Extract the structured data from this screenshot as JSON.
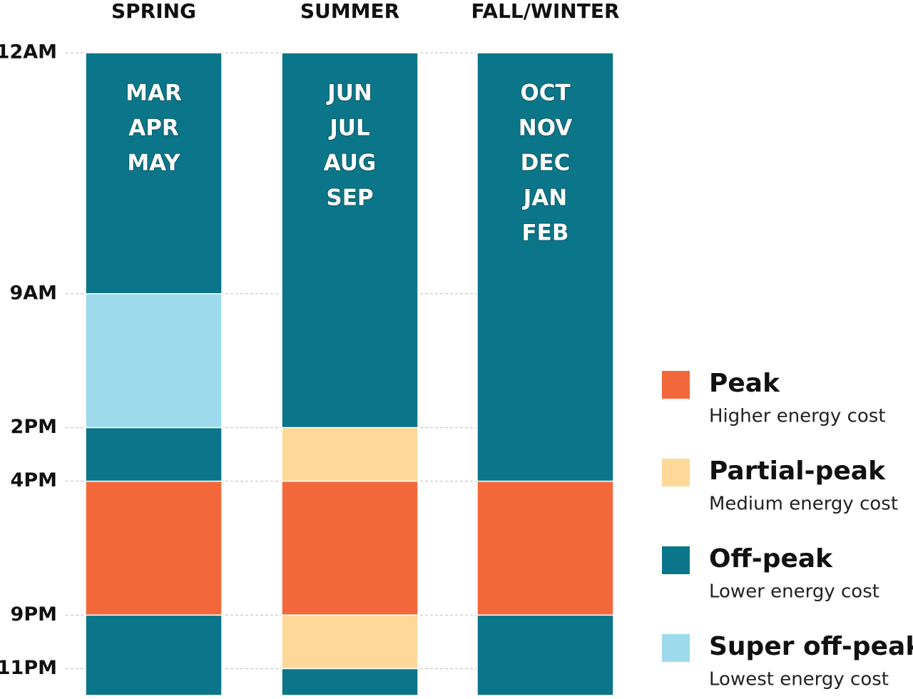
{
  "chart_data": {
    "type": "stacked-bar",
    "ylim": [
      0,
      24
    ],
    "yticks": [
      {
        "value": 0,
        "label": "12AM"
      },
      {
        "value": 9,
        "label": "9AM"
      },
      {
        "value": 14,
        "label": "2PM"
      },
      {
        "value": 16,
        "label": "4PM"
      },
      {
        "value": 21,
        "label": "9PM"
      },
      {
        "value": 23,
        "label": "11PM"
      }
    ],
    "grid": true,
    "series": [
      {
        "name": "Peak",
        "description": "Higher energy cost",
        "color": "#f2683b"
      },
      {
        "name": "Partial-peak",
        "description": "Medium energy cost",
        "color": "#fdd899"
      },
      {
        "name": "Off-peak",
        "description": "Lower energy cost",
        "color": "#0b7689"
      },
      {
        "name": "Super off-peak",
        "description": "Lowest energy cost",
        "color": "#9cdaec"
      }
    ],
    "columns": [
      {
        "name": "SPRING",
        "months": [
          "MAR",
          "APR",
          "MAY"
        ],
        "segments": [
          {
            "tier": "Off-peak",
            "hours": 9
          },
          {
            "tier": "Super off-peak",
            "hours": 5
          },
          {
            "tier": "Off-peak",
            "hours": 2
          },
          {
            "tier": "Peak",
            "hours": 5
          },
          {
            "tier": "Off-peak",
            "hours": 3
          }
        ]
      },
      {
        "name": "SUMMER",
        "months": [
          "JUN",
          "JUL",
          "AUG",
          "SEP"
        ],
        "segments": [
          {
            "tier": "Off-peak",
            "hours": 14
          },
          {
            "tier": "Partial-peak",
            "hours": 2
          },
          {
            "tier": "Peak",
            "hours": 5
          },
          {
            "tier": "Partial-peak",
            "hours": 2
          },
          {
            "tier": "Off-peak",
            "hours": 1
          }
        ]
      },
      {
        "name": "FALL/WINTER",
        "months": [
          "OCT",
          "NOV",
          "DEC",
          "JAN",
          "FEB"
        ],
        "segments": [
          {
            "tier": "Off-peak",
            "hours": 16
          },
          {
            "tier": "Peak",
            "hours": 5
          },
          {
            "tier": "Off-peak",
            "hours": 3
          }
        ]
      }
    ]
  }
}
